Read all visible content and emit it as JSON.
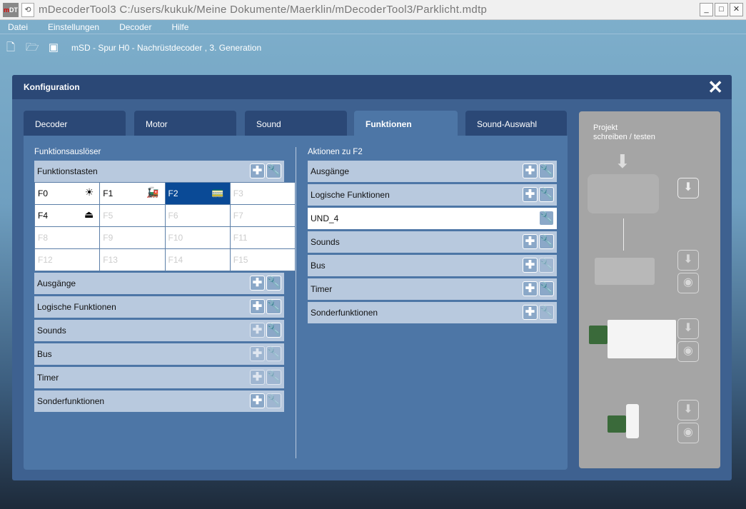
{
  "window": {
    "logo": "mDT",
    "title": "mDecoderTool3 C:/users/kukuk/Meine Dokumente/Maerklin/mDecoderTool3/Parklicht.mdtp",
    "buttons": [
      "_",
      "□",
      "✕"
    ]
  },
  "menu": [
    "Datei",
    "Einstellungen",
    "Decoder",
    "Hilfe"
  ],
  "toolbar": {
    "decoder_info": "mSD - Spur H0 - Nachrüstdecoder , 3. Generation",
    "icons": [
      "new-file-icon",
      "open-folder-icon",
      "save-icon"
    ]
  },
  "dialog": {
    "title": "Konfiguration",
    "tabs": [
      {
        "label": "Decoder"
      },
      {
        "label": "Motor"
      },
      {
        "label": "Sound"
      },
      {
        "label": "Funktionen",
        "active": true
      },
      {
        "label": "Sound-Auswahl"
      }
    ],
    "left": {
      "title": "Funktionsauslöser",
      "header": "Funktionstasten",
      "keys": [
        {
          "label": "F0",
          "active": true,
          "icon": "light-icon"
        },
        {
          "label": "F1",
          "active": true,
          "icon": "locomotive-icon"
        },
        {
          "label": "F2",
          "active": true,
          "selected": true,
          "icon": "railcar-icon"
        },
        {
          "label": "F3"
        },
        {
          "label": "F4",
          "active": true,
          "icon": "weight-icon"
        },
        {
          "label": "F5"
        },
        {
          "label": "F6"
        },
        {
          "label": "F7"
        },
        {
          "label": "F8"
        },
        {
          "label": "F9"
        },
        {
          "label": "F10"
        },
        {
          "label": "F11"
        },
        {
          "label": "F12"
        },
        {
          "label": "F13"
        },
        {
          "label": "F14"
        },
        {
          "label": "F15"
        }
      ],
      "rows": [
        "Ausgänge",
        "Logische Funktionen",
        "Sounds",
        "Bus",
        "Timer",
        "Sonderfunktionen"
      ]
    },
    "right": {
      "title": "Aktionen zu F2",
      "rows": [
        {
          "label": "Ausgänge"
        },
        {
          "label": "Logische Funktionen"
        },
        {
          "label": "UND_4",
          "item": true
        },
        {
          "label": "Sounds"
        },
        {
          "label": "Bus"
        },
        {
          "label": "Timer"
        },
        {
          "label": "Sonderfunktionen"
        }
      ]
    },
    "side": {
      "title_line1": "Projekt",
      "title_line2": "schreiben / testen"
    }
  },
  "colors": {
    "selected": "#0a4a96",
    "row": "#b8c9de",
    "header": "#2b4876"
  }
}
